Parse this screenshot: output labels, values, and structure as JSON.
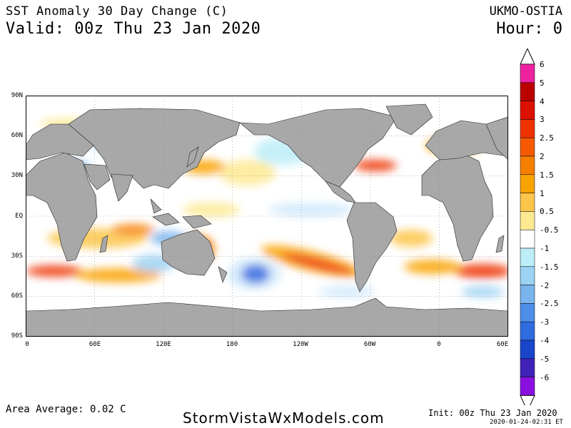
{
  "header": {
    "title": "SST Anomaly 30 Day Change (C)",
    "valid": "Valid: 00z Thu 23 Jan 2020",
    "model": "UKMO-OSTIA",
    "hour": "Hour: 0"
  },
  "map": {
    "lat_labels": [
      "90N",
      "60N",
      "30N",
      "EQ",
      "30S",
      "60S",
      "90S"
    ],
    "lon_labels": [
      "0",
      "60E",
      "120E",
      "180",
      "120W",
      "60W",
      "0",
      "60E"
    ],
    "land_color": "#a8a8a8",
    "ocean_color": "#ffffff",
    "features": [
      {
        "name": "warm-southern-pacific",
        "sign": "positive"
      },
      {
        "name": "warm-southern-atlantic",
        "sign": "positive"
      },
      {
        "name": "warm-indian-ocean",
        "sign": "positive"
      },
      {
        "name": "cold-southwest-pacific",
        "sign": "negative"
      },
      {
        "name": "cold-north-pacific",
        "sign": "negative"
      }
    ]
  },
  "legend": {
    "labels": [
      "6",
      "5",
      "4",
      "3",
      "2.5",
      "2",
      "1.5",
      "1",
      "0.5",
      "-0.5",
      "-1",
      "-1.5",
      "-2",
      "-2.5",
      "-3",
      "-4",
      "-5",
      "-6"
    ],
    "colors": [
      "#ee22a0",
      "#bb0000",
      "#dd1100",
      "#ee3300",
      "#f55a00",
      "#f77f00",
      "#f9a300",
      "#fcc54a",
      "#fde992",
      "#ffffff",
      "#bdeef8",
      "#9cd2f2",
      "#79b4ec",
      "#4e8ee8",
      "#2f6ce0",
      "#1a46cc",
      "#4022b8",
      "#8a10e0"
    ]
  },
  "footer": {
    "area_average": "Area Average: 0.02 C",
    "site": "StormVistaWxModels.com",
    "init": "Init: 00z Thu 23 Jan 2020",
    "timestamp": "2020-01-24-02:31 ET"
  }
}
